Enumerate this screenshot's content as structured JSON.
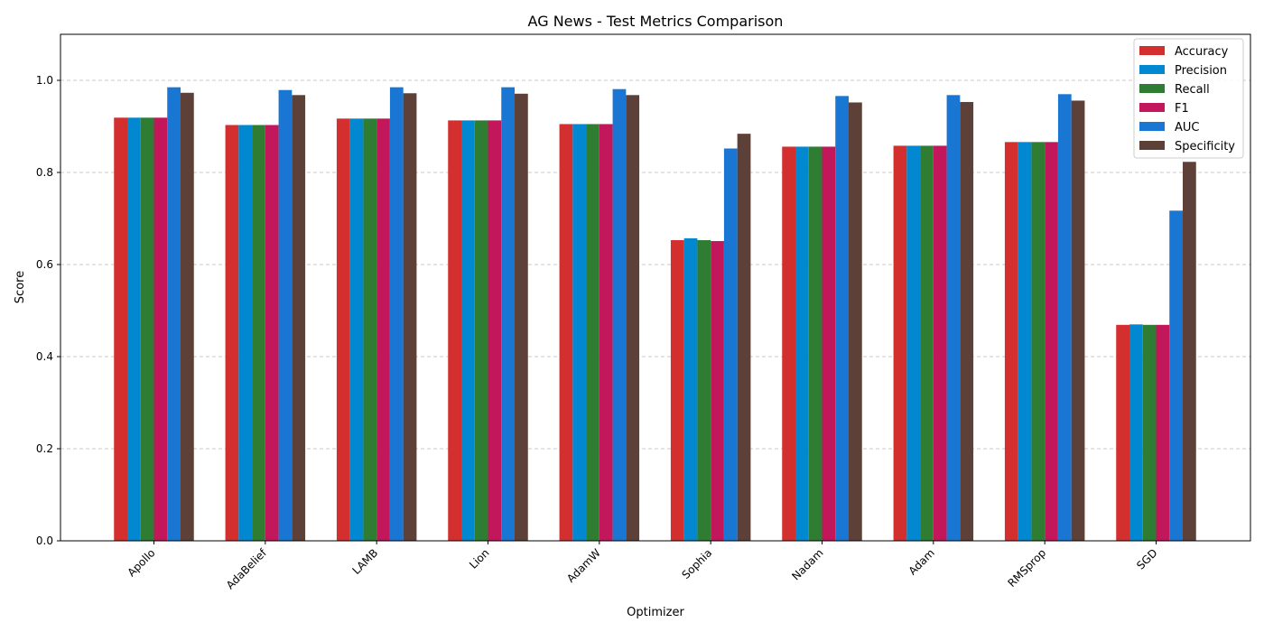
{
  "chart_data": {
    "type": "bar",
    "title": "AG News - Test Metrics Comparison",
    "xlabel": "Optimizer",
    "ylabel": "Score",
    "ylim": [
      0,
      1.1
    ],
    "yticks": [
      "0.0",
      "0.2",
      "0.4",
      "0.6",
      "0.8",
      "1.0"
    ],
    "grid": "horizontal dashed",
    "legend_position": "top-right",
    "categories": [
      "Apollo",
      "AdaBelief",
      "LAMB",
      "Lion",
      "AdamW",
      "Sophia",
      "Nadam",
      "Adam",
      "RMSprop",
      "SGD"
    ],
    "series": [
      {
        "name": "Accuracy",
        "color": "#d32f2f",
        "values": [
          0.919,
          0.903,
          0.917,
          0.913,
          0.905,
          0.653,
          0.856,
          0.858,
          0.866,
          0.469
        ]
      },
      {
        "name": "Precision",
        "color": "#0288d1",
        "values": [
          0.919,
          0.903,
          0.917,
          0.913,
          0.905,
          0.657,
          0.856,
          0.858,
          0.866,
          0.47
        ]
      },
      {
        "name": "Recall",
        "color": "#2e7d32",
        "values": [
          0.919,
          0.903,
          0.917,
          0.913,
          0.905,
          0.653,
          0.856,
          0.858,
          0.866,
          0.469
        ]
      },
      {
        "name": "F1",
        "color": "#c2185b",
        "values": [
          0.919,
          0.903,
          0.917,
          0.913,
          0.905,
          0.651,
          0.856,
          0.858,
          0.866,
          0.469
        ]
      },
      {
        "name": "AUC",
        "color": "#1976d2",
        "values": [
          0.985,
          0.979,
          0.985,
          0.985,
          0.981,
          0.852,
          0.966,
          0.968,
          0.97,
          0.717
        ]
      },
      {
        "name": "Specificity",
        "color": "#5d4037",
        "values": [
          0.973,
          0.968,
          0.972,
          0.971,
          0.968,
          0.884,
          0.952,
          0.953,
          0.956,
          0.823
        ]
      }
    ]
  }
}
